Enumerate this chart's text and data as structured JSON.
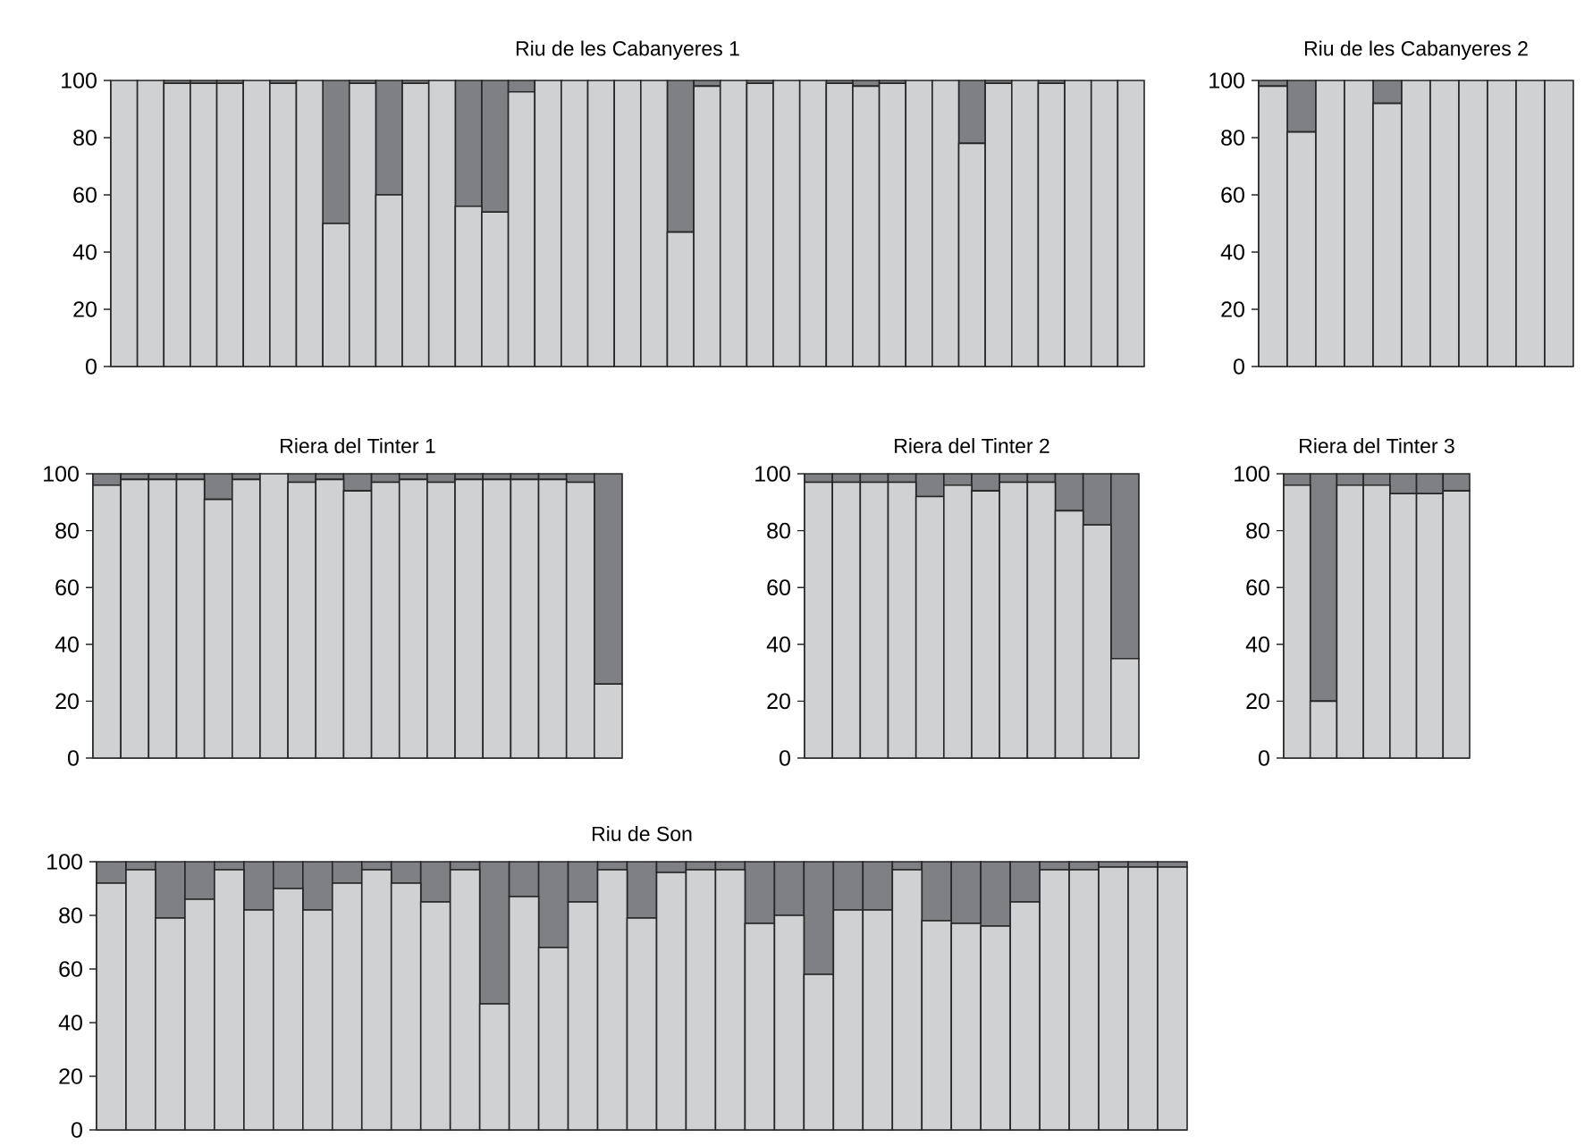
{
  "chart_data": [
    {
      "type": "bar",
      "stacked": true,
      "title": "Riu de les Cabanyeres 1",
      "categories": [
        null,
        null,
        null,
        null,
        null,
        null,
        null,
        null,
        null,
        null,
        null,
        null,
        null,
        null,
        null,
        null,
        null,
        null,
        null,
        null,
        null,
        null,
        null,
        null,
        null,
        null,
        null,
        null,
        null,
        null,
        null,
        null,
        null,
        null,
        null,
        null,
        null,
        null,
        null
      ],
      "ylim": [
        0,
        100
      ],
      "yticks": [
        0,
        20,
        40,
        60,
        80,
        100
      ],
      "tick_labels": "y",
      "series": [
        {
          "color": "#d0d1d3",
          "values": [
            100,
            100,
            99,
            99,
            99,
            100,
            99,
            100,
            50,
            99,
            60,
            99,
            100,
            56,
            54,
            96,
            100,
            100,
            100,
            100,
            100,
            47,
            98,
            100,
            99,
            100,
            100,
            99,
            98,
            99,
            100,
            100,
            78,
            99,
            100,
            99,
            100,
            100,
            100
          ]
        },
        {
          "color": "#7f8083",
          "values": [
            0,
            0,
            1,
            1,
            1,
            0,
            1,
            0,
            50,
            1,
            40,
            1,
            0,
            44,
            46,
            4,
            0,
            0,
            0,
            0,
            0,
            53,
            2,
            0,
            1,
            0,
            0,
            1,
            2,
            1,
            0,
            0,
            22,
            1,
            0,
            1,
            0,
            0,
            0
          ]
        }
      ]
    },
    {
      "type": "bar",
      "stacked": true,
      "title": "Riu de les Cabanyeres 2",
      "categories": [
        null,
        null,
        null,
        null,
        null,
        null,
        null,
        null,
        null,
        null,
        null
      ],
      "ylim": [
        0,
        100
      ],
      "yticks": [
        0,
        20,
        40,
        60,
        80,
        100
      ],
      "tick_labels": "y",
      "series": [
        {
          "color": "#d0d1d3",
          "values": [
            98,
            82,
            100,
            100,
            92,
            100,
            100,
            100,
            100,
            100,
            100
          ]
        },
        {
          "color": "#7f8083",
          "values": [
            2,
            18,
            0,
            0,
            8,
            0,
            0,
            0,
            0,
            0,
            0
          ]
        }
      ]
    },
    {
      "type": "bar",
      "stacked": true,
      "title": "Riera del Tinter 1",
      "categories": [
        null,
        null,
        null,
        null,
        null,
        null,
        null,
        null,
        null,
        null,
        null,
        null,
        null,
        null,
        null,
        null,
        null,
        null,
        null
      ],
      "ylim": [
        0,
        100
      ],
      "yticks": [
        0,
        20,
        40,
        60,
        80,
        100
      ],
      "tick_labels": "y",
      "series": [
        {
          "color": "#d0d1d3",
          "values": [
            96,
            98,
            98,
            98,
            91,
            98,
            100,
            97,
            98,
            94,
            97,
            98,
            97,
            98,
            98,
            98,
            98,
            97,
            26
          ]
        },
        {
          "color": "#7f8083",
          "values": [
            4,
            2,
            2,
            2,
            9,
            2,
            0,
            3,
            2,
            6,
            3,
            2,
            3,
            2,
            2,
            2,
            2,
            3,
            74
          ]
        }
      ]
    },
    {
      "type": "bar",
      "stacked": true,
      "title": "Riera del Tinter 2",
      "categories": [
        null,
        null,
        null,
        null,
        null,
        null,
        null,
        null,
        null,
        null,
        null,
        null
      ],
      "ylim": [
        0,
        100
      ],
      "yticks": [
        0,
        20,
        40,
        60,
        80,
        100
      ],
      "tick_labels": "y",
      "series": [
        {
          "color": "#d0d1d3",
          "values": [
            97,
            97,
            97,
            97,
            92,
            96,
            94,
            97,
            97,
            87,
            82,
            35
          ]
        },
        {
          "color": "#7f8083",
          "values": [
            3,
            3,
            3,
            3,
            8,
            4,
            6,
            3,
            3,
            13,
            18,
            65
          ]
        }
      ]
    },
    {
      "type": "bar",
      "stacked": true,
      "title": "Riera del Tinter 3",
      "categories": [
        null,
        null,
        null,
        null,
        null,
        null,
        null
      ],
      "ylim": [
        0,
        100
      ],
      "yticks": [
        0,
        20,
        40,
        60,
        80,
        100
      ],
      "tick_labels": "y",
      "series": [
        {
          "color": "#d0d1d3",
          "values": [
            96,
            20,
            96,
            96,
            93,
            93,
            94
          ]
        },
        {
          "color": "#7f8083",
          "values": [
            4,
            80,
            4,
            4,
            7,
            7,
            6
          ]
        }
      ]
    },
    {
      "type": "bar",
      "stacked": true,
      "title": "Riu de Son",
      "categories": [
        null,
        null,
        null,
        null,
        null,
        null,
        null,
        null,
        null,
        null,
        null,
        null,
        null,
        null,
        null,
        null,
        null,
        null,
        null,
        null,
        null,
        null,
        null,
        null,
        null,
        null,
        null,
        null,
        null,
        null,
        null,
        null,
        null,
        null,
        null,
        null,
        null
      ],
      "ylim": [
        0,
        100
      ],
      "yticks": [
        0,
        20,
        40,
        60,
        80,
        100
      ],
      "tick_labels": "y",
      "series": [
        {
          "color": "#d0d1d3",
          "values": [
            92,
            97,
            79,
            86,
            97,
            82,
            90,
            82,
            92,
            97,
            92,
            85,
            97,
            47,
            87,
            68,
            85,
            97,
            79,
            96,
            97,
            97,
            77,
            80,
            58,
            82,
            82,
            97,
            78,
            77,
            76,
            85,
            97,
            97,
            98,
            98,
            98
          ]
        },
        {
          "color": "#7f8083",
          "values": [
            8,
            3,
            21,
            14,
            3,
            18,
            10,
            18,
            8,
            3,
            8,
            15,
            3,
            53,
            13,
            32,
            15,
            3,
            21,
            4,
            3,
            3,
            23,
            20,
            42,
            18,
            18,
            3,
            22,
            23,
            24,
            15,
            3,
            3,
            2,
            2,
            2
          ]
        }
      ]
    }
  ]
}
